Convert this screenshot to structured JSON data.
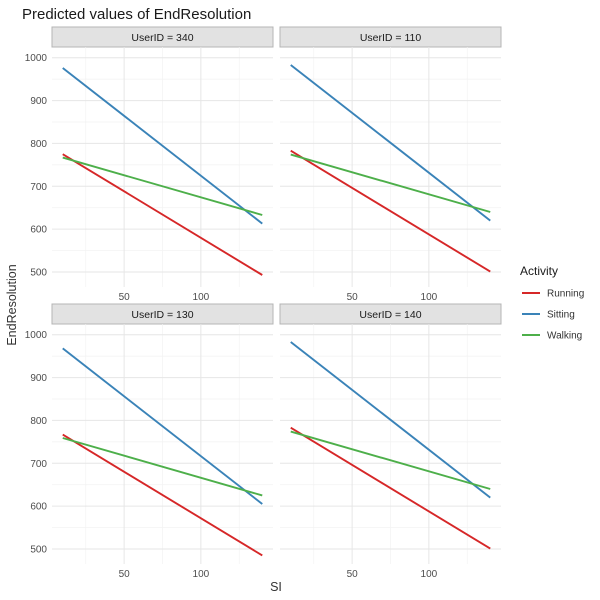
{
  "chart_data": {
    "type": "line",
    "title": "Predicted values of EndResolution",
    "xlabel": "SI",
    "ylabel": "EndResolution",
    "xlim": [
      3,
      147
    ],
    "ylim": [
      465,
      1025
    ],
    "x_ticks": [
      50,
      100
    ],
    "y_ticks": [
      500,
      600,
      700,
      800,
      900,
      1000
    ],
    "facet_label_prefix": "UserID = ",
    "legend": {
      "title": "Activity",
      "position": "right",
      "entries": [
        {
          "name": "Running",
          "color": "#d62728"
        },
        {
          "name": "Sitting",
          "color": "#3a83b8"
        },
        {
          "name": "Walking",
          "color": "#4daf4a"
        }
      ]
    },
    "panels": [
      {
        "facet": "340",
        "series": [
          {
            "name": "Running",
            "x": [
              10,
              140
            ],
            "y": [
              775,
              493
            ]
          },
          {
            "name": "Sitting",
            "x": [
              10,
              140
            ],
            "y": [
              976,
              613
            ]
          },
          {
            "name": "Walking",
            "x": [
              10,
              140
            ],
            "y": [
              767,
              633
            ]
          }
        ]
      },
      {
        "facet": "110",
        "series": [
          {
            "name": "Running",
            "x": [
              10,
              140
            ],
            "y": [
              783,
              501
            ]
          },
          {
            "name": "Sitting",
            "x": [
              10,
              140
            ],
            "y": [
              983,
              620
            ]
          },
          {
            "name": "Walking",
            "x": [
              10,
              140
            ],
            "y": [
              774,
              640
            ]
          }
        ]
      },
      {
        "facet": "130",
        "series": [
          {
            "name": "Running",
            "x": [
              10,
              140
            ],
            "y": [
              767,
              485
            ]
          },
          {
            "name": "Sitting",
            "x": [
              10,
              140
            ],
            "y": [
              968,
              605
            ]
          },
          {
            "name": "Walking",
            "x": [
              10,
              140
            ],
            "y": [
              759,
              625
            ]
          }
        ]
      },
      {
        "facet": "140",
        "series": [
          {
            "name": "Running",
            "x": [
              10,
              140
            ],
            "y": [
              783,
              501
            ]
          },
          {
            "name": "Sitting",
            "x": [
              10,
              140
            ],
            "y": [
              983,
              620
            ]
          },
          {
            "name": "Walking",
            "x": [
              10,
              140
            ],
            "y": [
              774,
              640
            ]
          }
        ]
      }
    ]
  }
}
